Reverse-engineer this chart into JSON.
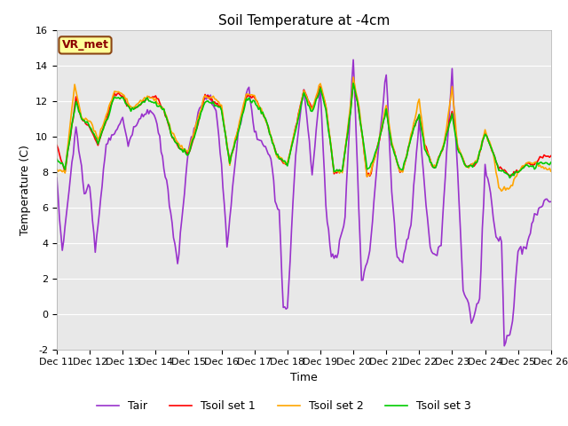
{
  "title": "Soil Temperature at -4cm",
  "xlabel": "Time",
  "ylabel": "Temperature (C)",
  "ylim": [
    -2,
    16
  ],
  "xlim": [
    0,
    360
  ],
  "background_color": "#ffffff",
  "plot_bg_color": "#e8e8e8",
  "grid_color": "#ffffff",
  "annotation_text": "VR_met",
  "annotation_color": "#8B0000",
  "annotation_bg": "#ffff99",
  "xtick_labels": [
    "Dec 11",
    "Dec 12",
    "Dec 13",
    "Dec 14",
    "Dec 15",
    "Dec 16",
    "Dec 17",
    "Dec 18",
    "Dec 19",
    "Dec 20",
    "Dec 21",
    "Dec 22",
    "Dec 23",
    "Dec 24",
    "Dec 25",
    "Dec 26"
  ],
  "xtick_positions": [
    0,
    24,
    48,
    72,
    96,
    120,
    144,
    168,
    192,
    216,
    240,
    264,
    288,
    312,
    336,
    360
  ],
  "series": {
    "Tair": {
      "color": "#9932CC",
      "linewidth": 1.2
    },
    "Tsoil set 1": {
      "color": "#FF0000",
      "linewidth": 1.2
    },
    "Tsoil set 2": {
      "color": "#FFA500",
      "linewidth": 1.2
    },
    "Tsoil set 3": {
      "color": "#00CC00",
      "linewidth": 1.2
    }
  },
  "title_fontsize": 11,
  "axis_fontsize": 9,
  "tick_fontsize": 8,
  "legend_fontsize": 9
}
